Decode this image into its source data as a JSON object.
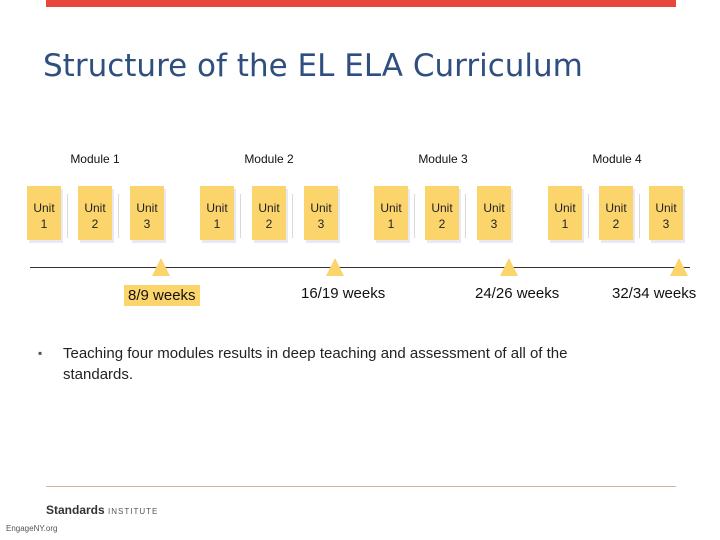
{
  "title": "Structure of the EL ELA Curriculum",
  "modules": [
    {
      "label": "Module 1",
      "units": [
        [
          "Unit",
          "1"
        ],
        [
          "Unit",
          "2"
        ],
        [
          "Unit",
          "3"
        ]
      ],
      "weeks": "8/9 weeks"
    },
    {
      "label": "Module 2",
      "units": [
        [
          "Unit",
          "1"
        ],
        [
          "Unit",
          "2"
        ],
        [
          "Unit",
          "3"
        ]
      ],
      "weeks": "16/19 weeks"
    },
    {
      "label": "Module 3",
      "units": [
        [
          "Unit",
          "1"
        ],
        [
          "Unit",
          "2"
        ],
        [
          "Unit",
          "3"
        ]
      ],
      "weeks": "24/26 weeks"
    },
    {
      "label": "Module 4",
      "units": [
        [
          "Unit",
          "1"
        ],
        [
          "Unit",
          "2"
        ],
        [
          "Unit",
          "3"
        ]
      ],
      "weeks": "32/34 weeks"
    }
  ],
  "bullet": "Teaching four modules results in deep teaching and assessment of all of the standards.",
  "bullet_marker": "▪",
  "footer": {
    "brand": "Standards",
    "brand_suffix": "INSTITUTE",
    "site": "EngageNY.org"
  },
  "colors": {
    "accent_bar": "#e8453c",
    "unit_fill": "#fbd46c",
    "title": "#2f4f7f"
  }
}
